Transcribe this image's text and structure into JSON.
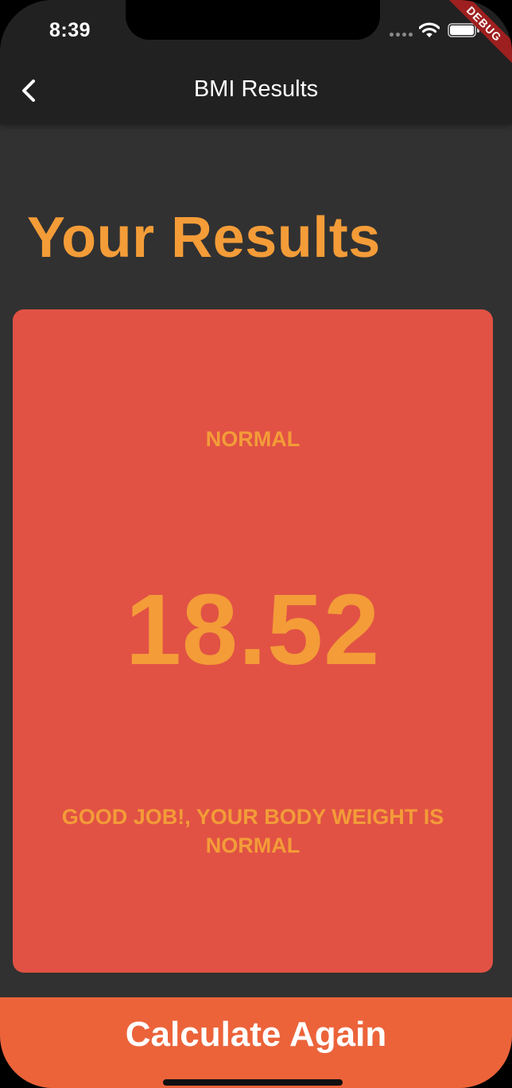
{
  "status_bar": {
    "time": "8:39",
    "icons": [
      "signal-dots-icon",
      "wifi-icon",
      "battery-icon"
    ]
  },
  "debug_banner": "DEBUG",
  "app_bar": {
    "back_icon": "chevron-left-icon",
    "title": "BMI Results"
  },
  "page": {
    "heading": "Your Results"
  },
  "result_card": {
    "status": "NORMAL",
    "bmi": "18.52",
    "message": "GOOD JOB!, YOUR BODY WEIGHT IS NORMAL"
  },
  "bottom_button": {
    "label": "Calculate Again"
  },
  "colors": {
    "background": "#313131",
    "app_bar": "#212121",
    "accent_text": "#f39c38",
    "card": "#e15244",
    "button": "#ec633a"
  }
}
